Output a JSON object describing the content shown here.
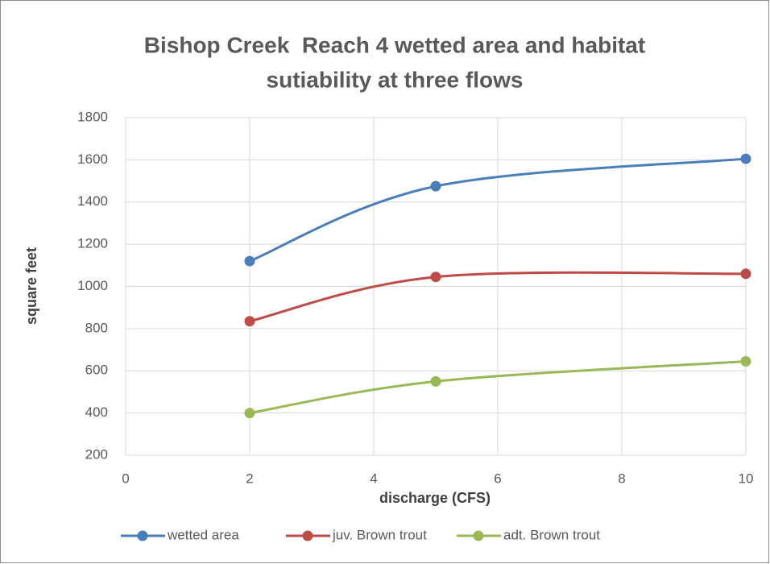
{
  "chart_data": {
    "type": "line",
    "title": [
      "Bishop Creek  Reach 4 wetted area and habitat",
      "sutiability at three flows"
    ],
    "x_label": "discharge (CFS)",
    "y_label": "square feet",
    "x": [
      2,
      5,
      10
    ],
    "series": [
      {
        "name": "wetted area",
        "color": "#4a7ebb",
        "values": [
          1120,
          1475,
          1605
        ]
      },
      {
        "name": "juv. Brown trout",
        "color": "#be4b48",
        "values": [
          835,
          1045,
          1060
        ]
      },
      {
        "name": "adt. Brown trout",
        "color": "#98b954",
        "values": [
          400,
          550,
          645
        ]
      }
    ],
    "xlim": [
      0,
      10
    ],
    "xticks": [
      0,
      2,
      4,
      6,
      8,
      10
    ],
    "ylim": [
      200,
      1800
    ],
    "yticks": [
      200,
      400,
      600,
      800,
      1000,
      1200,
      1400,
      1600,
      1800
    ],
    "grid": true,
    "smooth": true,
    "legend": "bottom"
  }
}
